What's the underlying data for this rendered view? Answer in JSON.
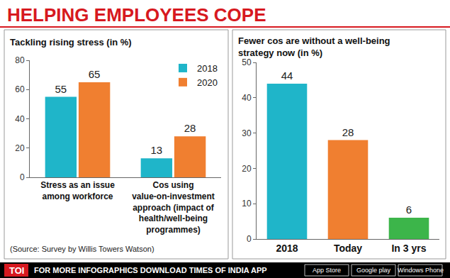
{
  "header": {
    "title": "HELPING EMPLOYEES COPE"
  },
  "footer": {
    "logo": "TOI",
    "text": "FOR MORE INFOGRAPHICS DOWNLOAD TIMES OF INDIA APP",
    "badges": [
      "App Store",
      "Google play",
      "Windows Phone"
    ]
  },
  "chart_data": [
    {
      "type": "bar",
      "title": "Tackling rising stress (in %)",
      "categories": [
        "Stress as an issue among workforce",
        "Cos using value-on-investment approach (impact of health/well-being programmes)"
      ],
      "series": [
        {
          "name": "2018",
          "color": "#1fb5c9",
          "values": [
            55,
            13
          ]
        },
        {
          "name": "2020",
          "color": "#f07f30",
          "values": [
            65,
            28
          ]
        }
      ],
      "ylim": [
        0,
        80
      ],
      "yticks": [
        0,
        20,
        40,
        60,
        80
      ],
      "grid": false,
      "legend": "top right",
      "data_labels": true,
      "annotations": [
        "(Source: Survey by Willis Towers Watson)"
      ]
    },
    {
      "type": "bar",
      "title": "Fewer cos are without a well-being strategy now (in %)",
      "categories": [
        "2018",
        "Today",
        "In 3 yrs"
      ],
      "values": [
        44,
        28,
        6
      ],
      "colors": [
        "#1fb5c9",
        "#f07f30",
        "#3cb54a"
      ],
      "ylim": [
        0,
        50
      ],
      "yticks": [
        0,
        10,
        20,
        30,
        40,
        50
      ],
      "grid": false,
      "data_labels": true
    }
  ]
}
